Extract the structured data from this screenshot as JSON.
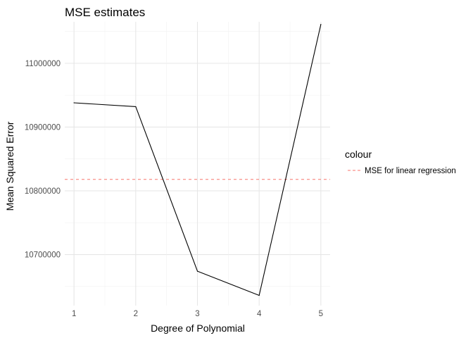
{
  "chart_data": {
    "type": "line",
    "title": "MSE estimates",
    "xlabel": "Degree of Polynomial",
    "ylabel": "Mean Squared Error",
    "x": [
      1,
      2,
      3,
      4,
      5
    ],
    "x_tick_labels": [
      "1",
      "2",
      "3",
      "4",
      "5"
    ],
    "xlim": [
      0.85,
      5.15
    ],
    "ylim": [
      10620000,
      11065000
    ],
    "y_ticks": [
      10700000,
      10800000,
      10900000,
      11000000
    ],
    "y_tick_labels": [
      "10700000",
      "10800000",
      "10900000",
      "11000000"
    ],
    "grid": true,
    "series": [
      {
        "values": [
          10938000,
          10932000,
          10674000,
          10636000,
          11061000
        ],
        "color": "#000000",
        "style": "solid"
      }
    ],
    "reference_lines": [
      {
        "name": "MSE for linear regression",
        "value": 10818000,
        "color": "#F8766D",
        "style": "dashed"
      }
    ],
    "legend": {
      "title": "colour",
      "placement": "right",
      "entries": [
        "MSE for linear regression"
      ]
    }
  }
}
